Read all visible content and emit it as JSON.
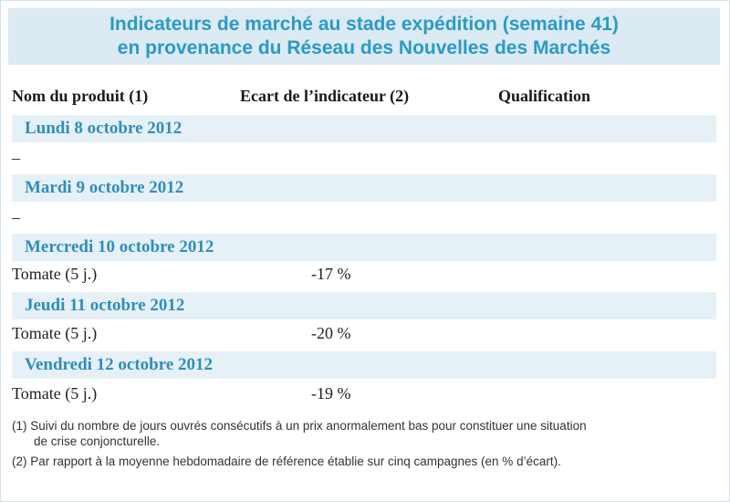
{
  "title": {
    "line1": "Indicateurs de marché au stade expédition (semaine 41)",
    "line2": "en provenance du Réseau des Nouvelles des Marchés"
  },
  "columns": {
    "product": "Nom du produit (1)",
    "indicator": "Ecart de l’indicateur (2)",
    "qualification": "Qualification"
  },
  "days": [
    {
      "date": "Lundi 8 octobre 2012",
      "rows": [
        {
          "product": "–",
          "ecart": ""
        }
      ]
    },
    {
      "date": "Mardi 9 octobre 2012",
      "rows": [
        {
          "product": "–",
          "ecart": ""
        }
      ]
    },
    {
      "date": "Mercredi 10 octobre 2012",
      "rows": [
        {
          "product": "Tomate (5 j.)",
          "ecart": "-17 %"
        }
      ]
    },
    {
      "date": "Jeudi 11 octobre 2012",
      "rows": [
        {
          "product": "Tomate (5 j.)",
          "ecart": "-20 %"
        }
      ]
    },
    {
      "date": "Vendredi 12 octobre 2012",
      "rows": [
        {
          "product": "Tomate (5 j.)",
          "ecart": "-19 %"
        }
      ]
    }
  ],
  "notes": {
    "note1_line1": "(1) Suivi du nombre de jours ouvrés consécutifs à un prix anormalement bas pour constituer une situation",
    "note1_line2": "de crise conjoncturelle.",
    "note2": "(2) Par rapport à la moyenne hebdomadaire de référence établie sur cinq campagnes (en % d’écart)."
  }
}
